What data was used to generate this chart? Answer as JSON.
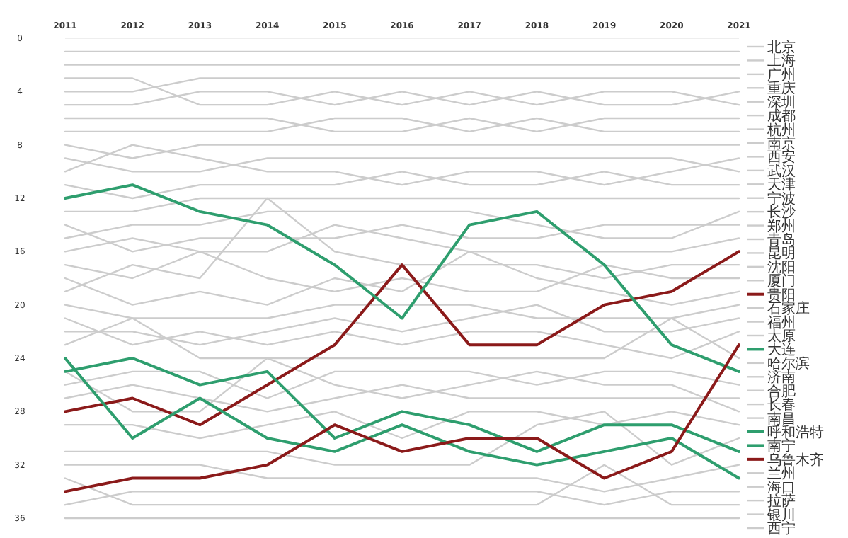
{
  "chart_data": {
    "type": "line",
    "x": [
      2011,
      2012,
      2013,
      2014,
      2015,
      2016,
      2017,
      2018,
      2019,
      2020,
      2021
    ],
    "xlim": [
      2011,
      2021
    ],
    "xticks": [
      2011,
      2012,
      2013,
      2014,
      2015,
      2016,
      2017,
      2018,
      2019,
      2020,
      2021
    ],
    "ylim": [
      36,
      0
    ],
    "yticks": [
      0,
      4,
      8,
      12,
      16,
      20,
      24,
      28,
      32,
      36
    ],
    "legend": "right",
    "series": [
      {
        "name": "北京",
        "color": "#cccccc",
        "values": [
          1,
          1,
          1,
          1,
          1,
          1,
          1,
          1,
          1,
          1,
          1
        ]
      },
      {
        "name": "上海",
        "color": "#cccccc",
        "values": [
          2,
          2,
          2,
          2,
          2,
          2,
          2,
          2,
          2,
          2,
          2
        ]
      },
      {
        "name": "广州",
        "color": "#cccccc",
        "values": [
          4,
          4,
          3,
          3,
          3,
          3,
          3,
          3,
          3,
          3,
          3
        ]
      },
      {
        "name": "重庆",
        "color": "#cccccc",
        "values": [
          5,
          5,
          4,
          4,
          5,
          4,
          5,
          4,
          5,
          5,
          4
        ]
      },
      {
        "name": "深圳",
        "color": "#cccccc",
        "values": [
          3,
          3,
          5,
          5,
          4,
          5,
          4,
          5,
          4,
          4,
          5
        ]
      },
      {
        "name": "成都",
        "color": "#cccccc",
        "values": [
          6,
          6,
          6,
          6,
          7,
          7,
          6,
          7,
          6,
          6,
          6
        ]
      },
      {
        "name": "杭州",
        "color": "#cccccc",
        "values": [
          7,
          7,
          7,
          7,
          6,
          6,
          7,
          6,
          7,
          7,
          7
        ]
      },
      {
        "name": "南京",
        "color": "#cccccc",
        "values": [
          8,
          9,
          8,
          8,
          8,
          8,
          8,
          8,
          8,
          8,
          8
        ]
      },
      {
        "name": "西安",
        "color": "#cccccc",
        "values": [
          10,
          8,
          9,
          10,
          10,
          11,
          10,
          10,
          11,
          10,
          9
        ]
      },
      {
        "name": "武汉",
        "color": "#cccccc",
        "values": [
          9,
          10,
          10,
          9,
          9,
          9,
          9,
          9,
          9,
          9,
          10
        ]
      },
      {
        "name": "天津",
        "color": "#cccccc",
        "values": [
          11,
          12,
          11,
          11,
          11,
          10,
          11,
          11,
          10,
          11,
          11
        ]
      },
      {
        "name": "宁波",
        "color": "#cccccc",
        "values": [
          13,
          13,
          12,
          12,
          12,
          12,
          12,
          12,
          12,
          12,
          12
        ]
      },
      {
        "name": "长沙",
        "color": "#cccccc",
        "values": [
          15,
          14,
          14,
          13,
          13,
          13,
          13,
          14,
          15,
          15,
          13
        ]
      },
      {
        "name": "郑州",
        "color": "#cccccc",
        "values": [
          14,
          16,
          15,
          15,
          15,
          14,
          15,
          15,
          14,
          14,
          14
        ]
      },
      {
        "name": "青岛",
        "color": "#cccccc",
        "values": [
          16,
          15,
          16,
          16,
          14,
          15,
          16,
          16,
          16,
          16,
          15
        ]
      },
      {
        "name": "昆明",
        "color": "#cccccc",
        "values": [
          19,
          17,
          18,
          12,
          16,
          17,
          17,
          17,
          18,
          17,
          17
        ]
      },
      {
        "name": "沈阳",
        "color": "#cccccc",
        "values": [
          17,
          18,
          16,
          18,
          19,
          18,
          19,
          19,
          17,
          18,
          18
        ]
      },
      {
        "name": "厦门",
        "color": "#cccccc",
        "values": [
          18,
          20,
          19,
          20,
          18,
          19,
          16,
          18,
          19,
          20,
          19
        ]
      },
      {
        "name": "贵阳",
        "color": "#8b1a1a",
        "values": [
          28,
          27,
          29,
          26,
          23,
          17,
          23,
          23,
          20,
          19,
          16
        ]
      },
      {
        "name": "石家庄",
        "color": "#cccccc",
        "values": [
          20,
          21,
          21,
          21,
          20,
          20,
          20,
          21,
          21,
          21,
          20
        ]
      },
      {
        "name": "福州",
        "color": "#cccccc",
        "values": [
          22,
          22,
          23,
          22,
          21,
          22,
          21,
          20,
          22,
          22,
          21
        ]
      },
      {
        "name": "太原",
        "color": "#cccccc",
        "values": [
          21,
          23,
          22,
          23,
          22,
          23,
          22,
          22,
          23,
          24,
          22
        ]
      },
      {
        "name": "大连",
        "color": "#2e9e6e",
        "values": [
          12,
          11,
          13,
          14,
          17,
          21,
          14,
          13,
          17,
          23,
          25
        ]
      },
      {
        "name": "哈尔滨",
        "color": "#cccccc",
        "values": [
          23,
          21,
          24,
          24,
          24,
          24,
          24,
          24,
          24,
          21,
          24
        ]
      },
      {
        "name": "济南",
        "color": "#cccccc",
        "values": [
          26,
          25,
          25,
          27,
          25,
          25,
          25,
          26,
          25,
          25,
          26
        ]
      },
      {
        "name": "合肥",
        "color": "#cccccc",
        "values": [
          27,
          26,
          27,
          28,
          27,
          26,
          27,
          27,
          27,
          27,
          27
        ]
      },
      {
        "name": "长春",
        "color": "#cccccc",
        "values": [
          25,
          28,
          28,
          24,
          26,
          27,
          26,
          25,
          26,
          26,
          28
        ]
      },
      {
        "name": "南昌",
        "color": "#cccccc",
        "values": [
          29,
          29,
          30,
          29,
          28,
          30,
          28,
          28,
          29,
          28,
          29
        ]
      },
      {
        "name": "呼和浩特",
        "color": "#2e9e6e",
        "values": [
          25,
          24,
          26,
          25,
          30,
          28,
          29,
          31,
          29,
          29,
          31
        ]
      },
      {
        "name": "南宁",
        "color": "#2e9e6e",
        "values": [
          24,
          30,
          27,
          30,
          31,
          29,
          31,
          32,
          31,
          30,
          33
        ]
      },
      {
        "name": "乌鲁木齐",
        "color": "#8b1a1a",
        "values": [
          34,
          33,
          33,
          32,
          29,
          31,
          30,
          30,
          33,
          31,
          23
        ]
      },
      {
        "name": "兰州",
        "color": "#cccccc",
        "values": [
          31,
          31,
          31,
          31,
          32,
          32,
          32,
          29,
          28,
          32,
          30
        ]
      },
      {
        "name": "海口",
        "color": "#cccccc",
        "values": [
          32,
          32,
          32,
          33,
          33,
          33,
          33,
          33,
          34,
          33,
          32
        ]
      },
      {
        "name": "拉萨",
        "color": "#cccccc",
        "values": [
          35,
          34,
          34,
          34,
          34,
          34,
          34,
          34,
          35,
          34,
          34
        ]
      },
      {
        "name": "银川",
        "color": "#cccccc",
        "values": [
          33,
          35,
          35,
          35,
          35,
          35,
          35,
          35,
          32,
          35,
          35
        ]
      },
      {
        "name": "西宁",
        "color": "#cccccc",
        "values": [
          36,
          36,
          36,
          36,
          36,
          36,
          36,
          36,
          36,
          36,
          36
        ]
      }
    ]
  }
}
